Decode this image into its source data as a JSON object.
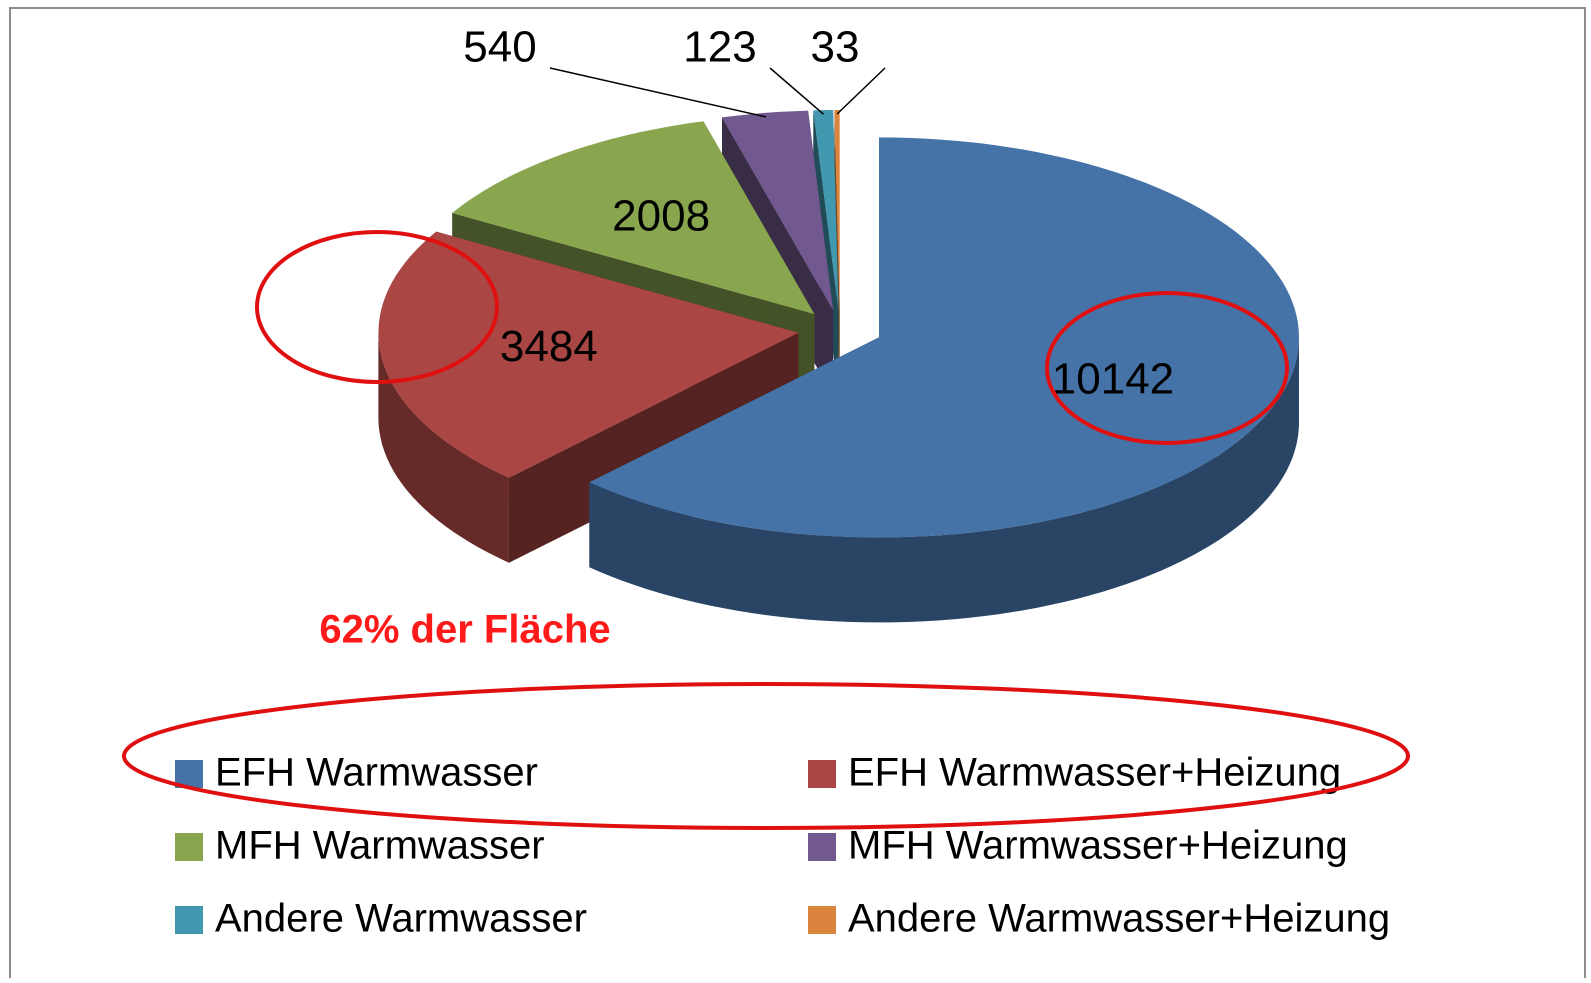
{
  "chart_data": {
    "type": "pie",
    "categories": [
      "EFH Warmwasser",
      "EFH Warmwasser+Heizung",
      "MFH Warmwasser",
      "MFH Warmwasser+Heizung",
      "Andere Warmwasser",
      "Andere Warmwasser+Heizung"
    ],
    "values": [
      10142,
      3484,
      2008,
      540,
      123,
      33
    ],
    "colors": [
      "#4572a7",
      "#aa4643",
      "#89a54e",
      "#71588f",
      "#4198af",
      "#db843d"
    ],
    "annotation": "62% der Fläche",
    "legend": "bottom"
  }
}
